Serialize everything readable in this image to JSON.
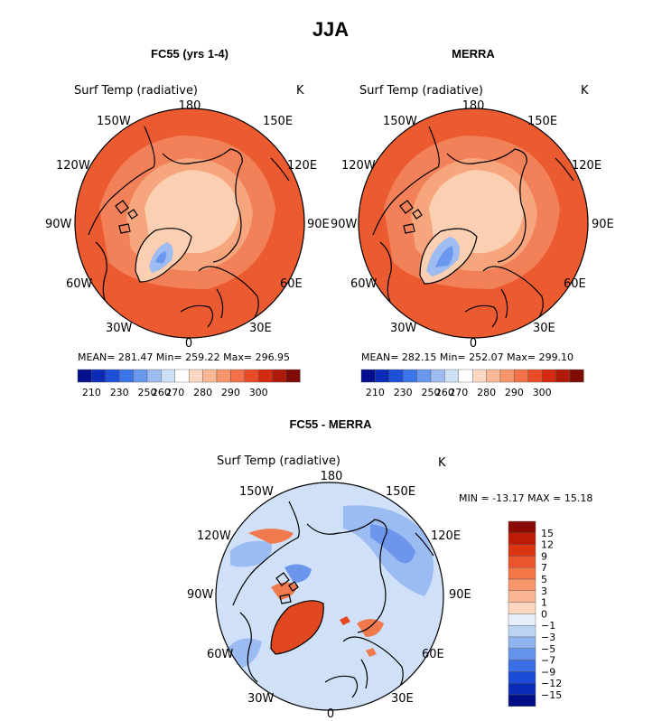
{
  "title": "JJA",
  "panels": [
    {
      "id": "fc55",
      "title": "FC55 (yrs 1-4)",
      "varlabel": "Surf Temp (radiative)",
      "unit": "K",
      "stats": "MEAN= 281.47   Min= 259.22   Max= 296.95"
    },
    {
      "id": "merra",
      "title": "MERRA",
      "varlabel": "Surf Temp (radiative)",
      "unit": "K",
      "stats": "MEAN= 282.15   Min= 252.07   Max= 299.10"
    },
    {
      "id": "diff",
      "title": "FC55 - MERRA",
      "varlabel": "Surf Temp (radiative)",
      "unit": "K",
      "stats": "MIN = -13.17  MAX =  15.18"
    }
  ],
  "lon_labels": [
    "180",
    "150E",
    "120E",
    "90E",
    "60E",
    "30E",
    "0",
    "30W",
    "60W",
    "90W",
    "120W",
    "150W"
  ],
  "abs_colorbar": {
    "ticks": [
      "210",
      "230",
      "250",
      "260",
      "270",
      "280",
      "290",
      "300"
    ],
    "colors": [
      "#000f8c",
      "#0a2bb4",
      "#1f4fd6",
      "#3b74e8",
      "#6a98ee",
      "#9cbcf2",
      "#cde0f7",
      "#ffffff",
      "#fbd9c3",
      "#f9b795",
      "#f6946c",
      "#f2704a",
      "#e94b26",
      "#d42a0f",
      "#b01a08",
      "#7e0a02"
    ]
  },
  "diff_colorbar": {
    "ticks": [
      "15",
      "12",
      "9",
      "7",
      "5",
      "3",
      "1",
      "0",
      "−1",
      "−3",
      "−5",
      "−7",
      "−9",
      "−12",
      "−15"
    ],
    "colors": [
      "#8b0a02",
      "#bf1a06",
      "#dd3411",
      "#ec552b",
      "#f47545",
      "#f7956b",
      "#fab593",
      "#fcd6bf",
      "#e6eef9",
      "#bcd3f4",
      "#90b4ef",
      "#6592ec",
      "#3a6ee6",
      "#1c4bd8",
      "#0a2cb6",
      "#000d86"
    ]
  },
  "colors": {
    "abs_outer": "#ec5a2f",
    "abs_mid": "#f28058",
    "abs_light": "#f7a57c",
    "abs_pale": "#fbcfb2",
    "greenland_blue": "#9ebcf2",
    "greenland_deep": "#6a98ee",
    "diff_base": "#cfe0f8",
    "diff_blue": "#9bbbf3",
    "diff_blue_deep": "#6c96ec",
    "diff_red": "#f07a4e",
    "diff_red_deep": "#e2481f",
    "coast": "#000000"
  }
}
